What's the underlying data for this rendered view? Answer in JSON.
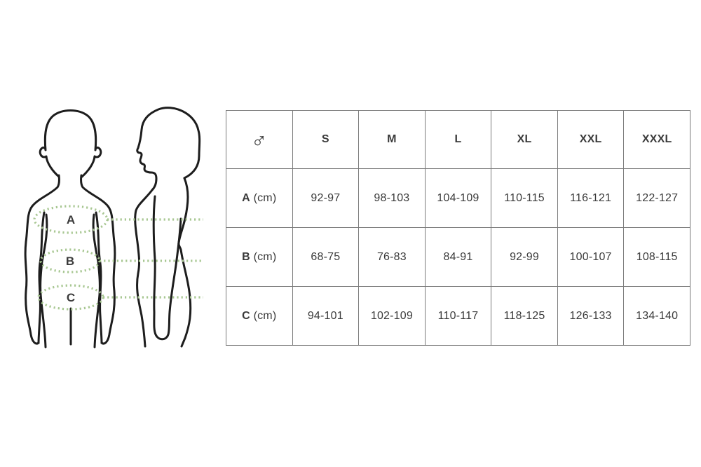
{
  "diagram": {
    "labels": {
      "a": "A",
      "b": "B",
      "c": "C"
    },
    "views": [
      "front",
      "side"
    ]
  },
  "table": {
    "header": {
      "gender_symbol": "♂",
      "sizes": [
        "S",
        "M",
        "L",
        "XL",
        "XXL",
        "XXXL"
      ]
    },
    "rows": [
      {
        "label": "A",
        "unit": "(cm)",
        "values": [
          "92-97",
          "98-103",
          "104-109",
          "110-115",
          "116-121",
          "122-127"
        ]
      },
      {
        "label": "B",
        "unit": "(cm)",
        "values": [
          "68-75",
          "76-83",
          "84-91",
          "92-99",
          "100-107",
          "108-115"
        ]
      },
      {
        "label": "C",
        "unit": "(cm)",
        "values": [
          "94-101",
          "102-109",
          "110-117",
          "118-125",
          "126-133",
          "134-140"
        ]
      }
    ]
  },
  "colors": {
    "background": "#ffffff",
    "outline": "#1d1d1d",
    "dotted_green": "#a8c792",
    "diagram_label": "#3b3b3b",
    "table_border": "#7a7a7a",
    "table_text": "#3a3a3a"
  }
}
